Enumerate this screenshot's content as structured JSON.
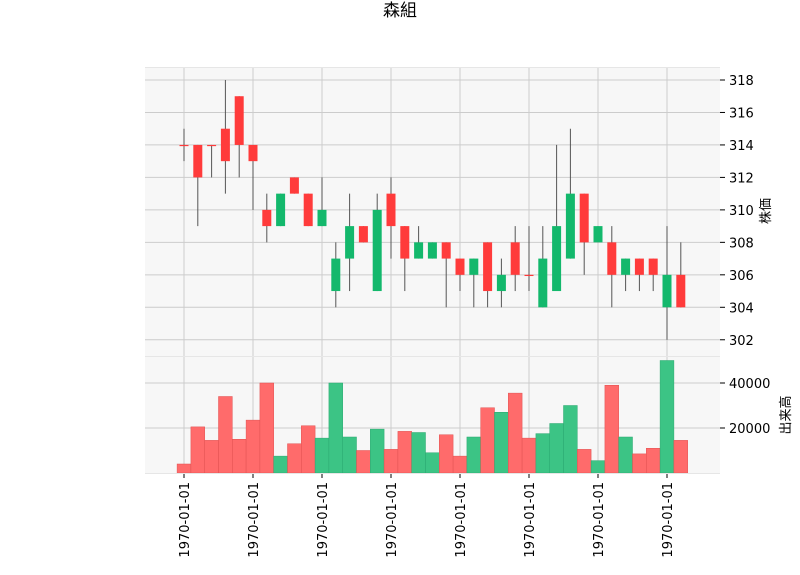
{
  "chart_data": {
    "type": "candlestick",
    "title": "森組",
    "price_axis": {
      "label": "株価",
      "ticks": [
        302,
        304,
        306,
        308,
        310,
        312,
        314,
        316,
        318
      ],
      "range": [
        301,
        318.8
      ],
      "grid": true,
      "side": "right"
    },
    "volume_axis": {
      "label": "出来高",
      "ticks": [
        20000,
        40000
      ],
      "tick_labels": [
        "20000",
        "40000"
      ],
      "range": [
        0,
        52000
      ],
      "grid": true,
      "side": "right"
    },
    "x_axis": {
      "tick_labels": [
        "1970-01-01",
        "1970-01-01",
        "1970-01-01",
        "1970-01-01",
        "1970-01-01",
        "1970-01-01",
        "1970-01-01",
        "1970-01-01"
      ],
      "tick_indices": [
        0,
        5,
        10,
        15,
        20,
        25,
        30,
        35
      ],
      "label_rotation_deg": -90
    },
    "colors": {
      "up": "#ff3b3b",
      "down": "#13b86c",
      "volume_up": "#ff6b6b",
      "volume_down": "#3cc485",
      "wick": "#555555",
      "panel_bg": "#f7f7f7",
      "grid": "#cccccc"
    },
    "candles": [
      {
        "open": 314,
        "high": 315,
        "low": 313,
        "close": 314,
        "volume": 4000
      },
      {
        "open": 312,
        "high": 314,
        "low": 309,
        "close": 314,
        "volume": 20500
      },
      {
        "open": 314,
        "high": 314,
        "low": 312,
        "close": 314,
        "volume": 14500
      },
      {
        "open": 313,
        "high": 318,
        "low": 311,
        "close": 315,
        "volume": 34000
      },
      {
        "open": 314,
        "high": 317,
        "low": 312,
        "close": 317,
        "volume": 15000
      },
      {
        "open": 313,
        "high": 314,
        "low": 310,
        "close": 314,
        "volume": 23500
      },
      {
        "open": 309,
        "high": 311,
        "low": 308,
        "close": 310,
        "volume": 40000
      },
      {
        "open": 311,
        "high": 311,
        "low": 309,
        "close": 309,
        "volume": 7500
      },
      {
        "open": 311,
        "high": 312,
        "low": 311,
        "close": 312,
        "volume": 13000
      },
      {
        "open": 309,
        "high": 311,
        "low": 309,
        "close": 311,
        "volume": 21000
      },
      {
        "open": 310,
        "high": 312,
        "low": 309,
        "close": 309,
        "volume": 15500
      },
      {
        "open": 307,
        "high": 308,
        "low": 304,
        "close": 305,
        "volume": 40000
      },
      {
        "open": 309,
        "high": 311,
        "low": 305,
        "close": 307,
        "volume": 16000
      },
      {
        "open": 308,
        "high": 309,
        "low": 308,
        "close": 309,
        "volume": 10000
      },
      {
        "open": 310,
        "high": 311,
        "low": 305,
        "close": 305,
        "volume": 19500
      },
      {
        "open": 309,
        "high": 312,
        "low": 307,
        "close": 311,
        "volume": 10500
      },
      {
        "open": 307,
        "high": 309,
        "low": 305,
        "close": 309,
        "volume": 18500
      },
      {
        "open": 308,
        "high": 309,
        "low": 307,
        "close": 307,
        "volume": 18000
      },
      {
        "open": 308,
        "high": 308,
        "low": 307,
        "close": 307,
        "volume": 9000
      },
      {
        "open": 307,
        "high": 308,
        "low": 304,
        "close": 308,
        "volume": 17000
      },
      {
        "open": 306,
        "high": 307,
        "low": 305,
        "close": 307,
        "volume": 7500
      },
      {
        "open": 307,
        "high": 307,
        "low": 304,
        "close": 306,
        "volume": 16000
      },
      {
        "open": 305,
        "high": 308,
        "low": 304,
        "close": 308,
        "volume": 29000
      },
      {
        "open": 306,
        "high": 307,
        "low": 304,
        "close": 305,
        "volume": 27000
      },
      {
        "open": 306,
        "high": 309,
        "low": 305,
        "close": 308,
        "volume": 35500
      },
      {
        "open": 306,
        "high": 309,
        "low": 305,
        "close": 306,
        "volume": 15500
      },
      {
        "open": 307,
        "high": 309,
        "low": 304,
        "close": 304,
        "volume": 17500
      },
      {
        "open": 309,
        "high": 314,
        "low": 305,
        "close": 305,
        "volume": 22000
      },
      {
        "open": 311,
        "high": 315,
        "low": 307,
        "close": 307,
        "volume": 30000
      },
      {
        "open": 308,
        "high": 311,
        "low": 306,
        "close": 311,
        "volume": 10500
      },
      {
        "open": 309,
        "high": 309,
        "low": 308,
        "close": 308,
        "volume": 5500
      },
      {
        "open": 306,
        "high": 309,
        "low": 304,
        "close": 308,
        "volume": 39000
      },
      {
        "open": 307,
        "high": 307,
        "low": 305,
        "close": 306,
        "volume": 16000
      },
      {
        "open": 306,
        "high": 307,
        "low": 305,
        "close": 307,
        "volume": 8500
      },
      {
        "open": 306,
        "high": 307,
        "low": 305,
        "close": 307,
        "volume": 11000
      },
      {
        "open": 306,
        "high": 309,
        "low": 302,
        "close": 304,
        "volume": 50000
      },
      {
        "open": 304,
        "high": 308,
        "low": 304,
        "close": 306,
        "volume": 14500
      }
    ]
  }
}
